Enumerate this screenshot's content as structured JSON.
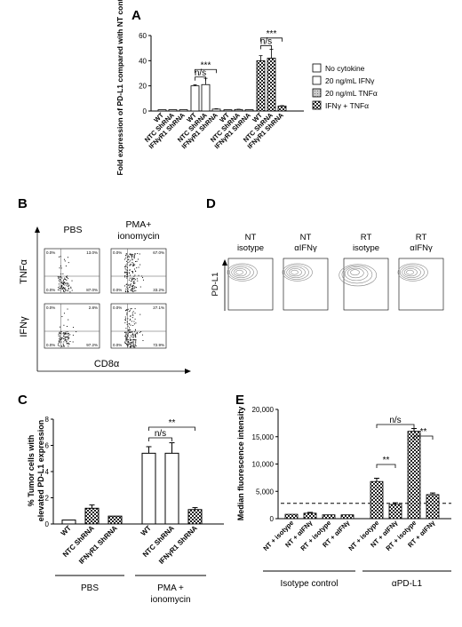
{
  "panels": {
    "A": "A",
    "B": "B",
    "C": "C",
    "D": "D",
    "E": "E"
  },
  "chart_data": [
    {
      "panel": "A",
      "type": "bar",
      "ylabel": "Fold expression of PD-L1 compared with NT control cells",
      "ylim": [
        0,
        60
      ],
      "yticks": [
        0,
        20,
        40,
        60
      ],
      "groups": [
        "No cytokine",
        "20 ng/mL IFNγ",
        "20 ng/mL TNFα",
        "IFNγ + TNFα"
      ],
      "categories": [
        "WT",
        "NTC ShRNA",
        "IFNγR1 ShRNA"
      ],
      "series": [
        {
          "name": "No cytokine",
          "pattern": "white",
          "values": [
            1,
            1,
            1
          ],
          "errors": [
            0,
            0,
            0
          ]
        },
        {
          "name": "20 ng/mL IFNγ",
          "pattern": "white",
          "values": [
            20,
            21,
            1.5
          ],
          "errors": [
            0.8,
            5,
            0.3
          ]
        },
        {
          "name": "20 ng/mL TNFα",
          "pattern": "gray",
          "values": [
            1,
            1.2,
            1
          ],
          "errors": [
            0,
            0.2,
            0
          ]
        },
        {
          "name": "IFNγ + TNFα",
          "pattern": "check",
          "values": [
            40,
            42,
            4
          ],
          "errors": [
            4,
            7,
            0.3
          ]
        }
      ],
      "comparisons": [
        {
          "group": 1,
          "from": 0,
          "to": 1,
          "label": "n/s"
        },
        {
          "group": 1,
          "from": 0,
          "to": 2,
          "label": "***"
        },
        {
          "group": 3,
          "from": 0,
          "to": 1,
          "label": "n/s"
        },
        {
          "group": 3,
          "from": 0,
          "to": 2,
          "label": "***"
        }
      ]
    },
    {
      "panel": "C",
      "type": "bar",
      "ylabel": "% Tumor cells with elevated PD-L1 expression",
      "ylim": [
        0,
        8
      ],
      "yticks": [
        0,
        2,
        4,
        6,
        8
      ],
      "categories": [
        "WT",
        "NTC ShRNA",
        "IFNγR1 ShRNA"
      ],
      "groups": [
        "PBS",
        "PMA + ionomycin"
      ],
      "series": [
        {
          "group": "PBS",
          "values": [
            0.3,
            1.2,
            0.6
          ],
          "errors": [
            0,
            0.25,
            0
          ],
          "patterns": [
            "white",
            "check",
            "check"
          ]
        },
        {
          "group": "PMA + ionomycin",
          "values": [
            5.4,
            5.4,
            1.1
          ],
          "errors": [
            0.5,
            0.8,
            0.15
          ],
          "patterns": [
            "white",
            "white",
            "check"
          ]
        }
      ],
      "comparisons": [
        {
          "from": 0,
          "to": 1,
          "label": "n/s"
        },
        {
          "from": 0,
          "to": 2,
          "label": "**"
        }
      ]
    },
    {
      "panel": "E",
      "type": "bar",
      "ylabel": "Median fluorescence intensity",
      "ylim": [
        0,
        20000
      ],
      "yticks": [
        "0",
        "5,000",
        "10,000",
        "15,000",
        "20,000"
      ],
      "ytick_values": [
        0,
        5000,
        10000,
        15000,
        20000
      ],
      "categories": [
        "NT + isotype",
        "NT + αIFNγ",
        "RT + isotype",
        "RT + αIFNγ",
        "NT + isotype",
        "NT + αIFNγ",
        "RT + isotype",
        "RT + αIFNγ"
      ],
      "values": [
        800,
        1000,
        700,
        700,
        6800,
        2600,
        16000,
        4400
      ],
      "errors": [
        0,
        150,
        0,
        0,
        600,
        300,
        500,
        300
      ],
      "dashed_line": 2800,
      "groups": [
        "Isotype control",
        "αPD-L1"
      ],
      "comparisons": [
        {
          "from": 4,
          "to": 5,
          "label": "**"
        },
        {
          "from": 4,
          "to": 6,
          "label": "n/s"
        },
        {
          "from": 6,
          "to": 7,
          "label": "**"
        }
      ]
    }
  ],
  "panel_b": {
    "col_titles": [
      "PBS",
      "PMA+\nionomycin"
    ],
    "row_labels": [
      "TNFα",
      "IFNγ"
    ],
    "xaxis_label": "CD8α",
    "quadrants": [
      {
        "tl": "0.0%",
        "tr": "13.0%",
        "bl": "0.0%",
        "br": "87.0%"
      },
      {
        "tl": "0.0%",
        "tr": "67.0%",
        "bl": "0.0%",
        "br": "33.2%"
      },
      {
        "tl": "0.0%",
        "tr": "2.8%",
        "bl": "0.0%",
        "br": "97.2%"
      },
      {
        "tl": "0.0%",
        "tr": "27.1%",
        "bl": "0.0%",
        "br": "72.9%"
      }
    ]
  },
  "panel_d": {
    "titles": [
      [
        "NT",
        "isotype"
      ],
      [
        "NT",
        "αIFNγ"
      ],
      [
        "RT",
        "isotype"
      ],
      [
        "RT",
        "αIFNγ"
      ]
    ],
    "yaxis_label": "PD-L1"
  }
}
